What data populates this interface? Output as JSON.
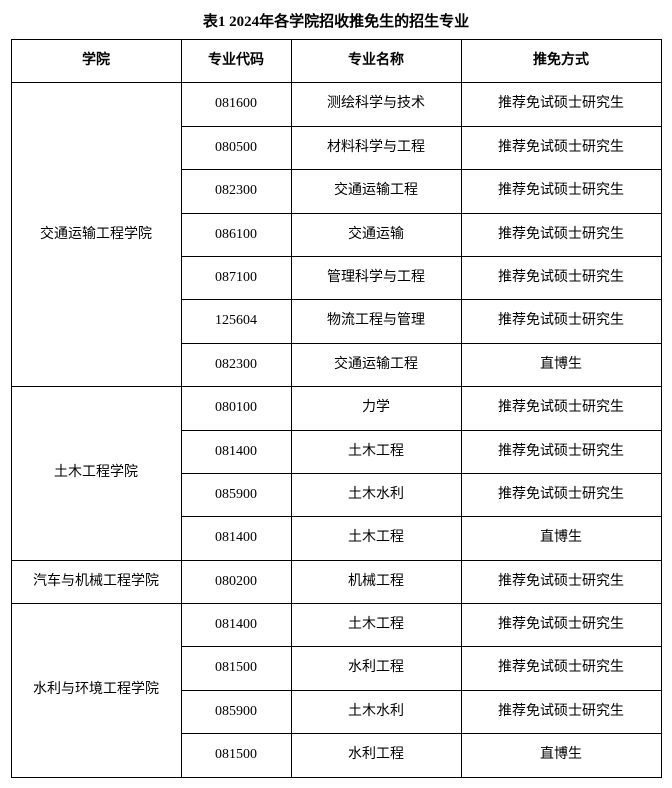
{
  "title": "表1 2024年各学院招收推免生的招生专业",
  "columns": {
    "college": "学院",
    "code": "专业代码",
    "major": "专业名称",
    "method": "推免方式"
  },
  "groups": [
    {
      "college": "交通运输工程学院",
      "rows": [
        {
          "code": "081600",
          "major": "测绘科学与技术",
          "method": "推荐免试硕士研究生"
        },
        {
          "code": "080500",
          "major": "材料科学与工程",
          "method": "推荐免试硕士研究生"
        },
        {
          "code": "082300",
          "major": "交通运输工程",
          "method": "推荐免试硕士研究生"
        },
        {
          "code": "086100",
          "major": "交通运输",
          "method": "推荐免试硕士研究生"
        },
        {
          "code": "087100",
          "major": "管理科学与工程",
          "method": "推荐免试硕士研究生"
        },
        {
          "code": "125604",
          "major": "物流工程与管理",
          "method": "推荐免试硕士研究生"
        },
        {
          "code": "082300",
          "major": "交通运输工程",
          "method": "直博生"
        }
      ]
    },
    {
      "college": "土木工程学院",
      "rows": [
        {
          "code": "080100",
          "major": "力学",
          "method": "推荐免试硕士研究生"
        },
        {
          "code": "081400",
          "major": "土木工程",
          "method": "推荐免试硕士研究生"
        },
        {
          "code": "085900",
          "major": "土木水利",
          "method": "推荐免试硕士研究生"
        },
        {
          "code": "081400",
          "major": "土木工程",
          "method": "直博生"
        }
      ]
    },
    {
      "college": "汽车与机械工程学院",
      "rows": [
        {
          "code": "080200",
          "major": "机械工程",
          "method": "推荐免试硕士研究生"
        }
      ]
    },
    {
      "college": "水利与环境工程学院",
      "rows": [
        {
          "code": "081400",
          "major": "土木工程",
          "method": "推荐免试硕士研究生"
        },
        {
          "code": "081500",
          "major": "水利工程",
          "method": "推荐免试硕士研究生"
        },
        {
          "code": "085900",
          "major": "土木水利",
          "method": "推荐免试硕士研究生"
        },
        {
          "code": "081500",
          "major": "水利工程",
          "method": "直博生"
        }
      ]
    }
  ],
  "styling": {
    "background_color": "#ffffff",
    "text_color": "#000000",
    "border_color": "#000000",
    "title_fontsize": 15,
    "cell_fontsize": 14,
    "col_widths": {
      "college": 170,
      "code": 110,
      "major": 170,
      "method": 200
    }
  }
}
